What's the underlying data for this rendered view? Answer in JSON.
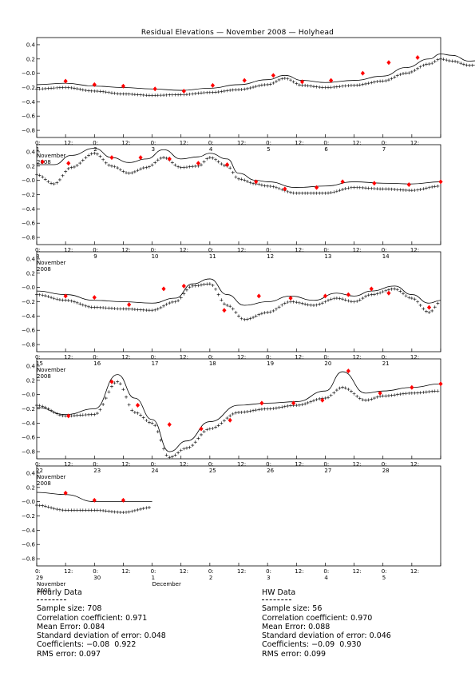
{
  "chart_data": {
    "type": "line",
    "title": "Residual Elevations — November 2008 — Holyhead",
    "yticks": [
      "0.4",
      "0.2",
      "−0.0",
      "−0.2",
      "−0.4",
      "−0.6",
      "−0.8"
    ],
    "ylim": [
      -0.9,
      0.5
    ],
    "panels": [
      {
        "start_day": 1,
        "day_labels": [
          "1",
          "2",
          "3",
          "4",
          "5",
          "6",
          "7"
        ],
        "month_label": [
          "November",
          "2008"
        ],
        "extra_label": "",
        "line": [
          [
            1.0,
            -0.16
          ],
          [
            1.5,
            -0.14
          ],
          [
            2.0,
            -0.18
          ],
          [
            2.5,
            -0.2
          ],
          [
            3.0,
            -0.22
          ],
          [
            3.5,
            -0.24
          ],
          [
            4.0,
            -0.21
          ],
          [
            4.5,
            -0.16
          ],
          [
            5.0,
            -0.09
          ],
          [
            5.3,
            -0.03
          ],
          [
            5.6,
            -0.1
          ],
          [
            6.0,
            -0.13
          ],
          [
            6.5,
            -0.1
          ],
          [
            7.0,
            -0.04
          ],
          [
            7.4,
            0.08
          ],
          [
            7.8,
            0.2
          ],
          [
            8.0,
            0.27
          ],
          [
            8.2,
            0.25
          ],
          [
            8.5,
            0.17
          ],
          [
            8.7,
            0.18
          ]
        ],
        "plus": [
          [
            1.0,
            -0.22
          ],
          [
            1.5,
            -0.2
          ],
          [
            2.0,
            -0.25
          ],
          [
            2.5,
            -0.29
          ],
          [
            3.0,
            -0.31
          ],
          [
            3.5,
            -0.3
          ],
          [
            4.0,
            -0.27
          ],
          [
            4.5,
            -0.23
          ],
          [
            5.0,
            -0.16
          ],
          [
            5.3,
            -0.07
          ],
          [
            5.6,
            -0.17
          ],
          [
            6.0,
            -0.2
          ],
          [
            6.5,
            -0.17
          ],
          [
            7.0,
            -0.11
          ],
          [
            7.4,
            0.0
          ],
          [
            7.8,
            0.13
          ],
          [
            8.0,
            0.2
          ],
          [
            8.2,
            0.17
          ],
          [
            8.5,
            0.11
          ],
          [
            8.7,
            0.12
          ]
        ],
        "diamonds": [
          [
            1.5,
            -0.11
          ],
          [
            2.0,
            -0.16
          ],
          [
            2.5,
            -0.18
          ],
          [
            3.05,
            -0.22
          ],
          [
            3.55,
            -0.25
          ],
          [
            4.05,
            -0.17
          ],
          [
            4.6,
            -0.1
          ],
          [
            5.1,
            -0.03
          ],
          [
            5.6,
            -0.12
          ],
          [
            6.1,
            -0.1
          ],
          [
            6.65,
            0.0
          ],
          [
            7.1,
            0.15
          ],
          [
            7.6,
            0.22
          ]
        ]
      },
      {
        "start_day": 8,
        "day_labels": [
          "8",
          "9",
          "10",
          "11",
          "12",
          "13",
          "14"
        ],
        "month_label": [
          "November",
          "2008"
        ],
        "extra_label": "",
        "line": [
          [
            8.0,
            0.22
          ],
          [
            8.3,
            0.22
          ],
          [
            8.6,
            0.35
          ],
          [
            9.0,
            0.45
          ],
          [
            9.3,
            0.32
          ],
          [
            9.6,
            0.25
          ],
          [
            9.9,
            0.3
          ],
          [
            10.2,
            0.43
          ],
          [
            10.5,
            0.3
          ],
          [
            10.8,
            0.33
          ],
          [
            11.0,
            0.38
          ],
          [
            11.3,
            0.3
          ],
          [
            11.5,
            0.1
          ],
          [
            11.8,
            0.0
          ],
          [
            12.0,
            -0.02
          ],
          [
            12.5,
            -0.1
          ],
          [
            13.0,
            -0.08
          ],
          [
            13.5,
            -0.02
          ],
          [
            14.0,
            -0.04
          ],
          [
            14.5,
            -0.05
          ],
          [
            15.0,
            -0.02
          ]
        ],
        "plus": [
          [
            8.0,
            0.08
          ],
          [
            8.3,
            -0.05
          ],
          [
            8.6,
            0.18
          ],
          [
            9.0,
            0.38
          ],
          [
            9.3,
            0.2
          ],
          [
            9.6,
            0.1
          ],
          [
            9.9,
            0.18
          ],
          [
            10.2,
            0.32
          ],
          [
            10.5,
            0.18
          ],
          [
            10.8,
            0.2
          ],
          [
            11.0,
            0.32
          ],
          [
            11.3,
            0.2
          ],
          [
            11.5,
            0.02
          ],
          [
            11.8,
            -0.05
          ],
          [
            12.0,
            -0.08
          ],
          [
            12.5,
            -0.18
          ],
          [
            13.0,
            -0.18
          ],
          [
            13.5,
            -0.1
          ],
          [
            14.0,
            -0.12
          ],
          [
            14.5,
            -0.14
          ],
          [
            15.0,
            -0.08
          ]
        ],
        "diamonds": [
          [
            8.1,
            0.26
          ],
          [
            8.55,
            0.24
          ],
          [
            9.3,
            0.32
          ],
          [
            9.8,
            0.32
          ],
          [
            10.3,
            0.3
          ],
          [
            10.8,
            0.24
          ],
          [
            11.3,
            0.22
          ],
          [
            11.8,
            -0.02
          ],
          [
            12.3,
            -0.12
          ],
          [
            12.85,
            -0.1
          ],
          [
            13.3,
            -0.02
          ],
          [
            13.85,
            -0.04
          ],
          [
            14.45,
            -0.06
          ],
          [
            15.0,
            -0.02
          ]
        ]
      },
      {
        "start_day": 15,
        "day_labels": [
          "15",
          "16",
          "17",
          "18",
          "19",
          "20",
          "21"
        ],
        "month_label": [
          "November",
          "2008"
        ],
        "extra_label": "",
        "line": [
          [
            15.0,
            -0.05
          ],
          [
            15.5,
            -0.1
          ],
          [
            16.0,
            -0.18
          ],
          [
            16.5,
            -0.2
          ],
          [
            17.0,
            -0.22
          ],
          [
            17.4,
            -0.15
          ],
          [
            17.7,
            0.05
          ],
          [
            18.0,
            0.12
          ],
          [
            18.3,
            -0.1
          ],
          [
            18.6,
            -0.25
          ],
          [
            19.0,
            -0.2
          ],
          [
            19.4,
            -0.12
          ],
          [
            19.8,
            -0.18
          ],
          [
            20.2,
            -0.08
          ],
          [
            20.5,
            -0.12
          ],
          [
            20.8,
            -0.05
          ],
          [
            21.2,
            0.02
          ],
          [
            21.5,
            -0.1
          ],
          [
            21.8,
            -0.22
          ],
          [
            22.0,
            -0.18
          ]
        ],
        "plus": [
          [
            15.0,
            -0.1
          ],
          [
            15.5,
            -0.18
          ],
          [
            16.0,
            -0.28
          ],
          [
            16.5,
            -0.3
          ],
          [
            17.0,
            -0.32
          ],
          [
            17.4,
            -0.2
          ],
          [
            17.7,
            0.02
          ],
          [
            18.0,
            0.05
          ],
          [
            18.3,
            -0.25
          ],
          [
            18.6,
            -0.45
          ],
          [
            19.0,
            -0.35
          ],
          [
            19.4,
            -0.2
          ],
          [
            19.8,
            -0.25
          ],
          [
            20.2,
            -0.15
          ],
          [
            20.5,
            -0.2
          ],
          [
            20.8,
            -0.1
          ],
          [
            21.2,
            -0.02
          ],
          [
            21.5,
            -0.15
          ],
          [
            21.8,
            -0.35
          ],
          [
            22.0,
            -0.2
          ]
        ],
        "diamonds": [
          [
            15.5,
            -0.12
          ],
          [
            16.0,
            -0.14
          ],
          [
            16.6,
            -0.24
          ],
          [
            17.2,
            -0.02
          ],
          [
            17.55,
            0.02
          ],
          [
            18.25,
            -0.32
          ],
          [
            18.85,
            -0.12
          ],
          [
            19.4,
            -0.15
          ],
          [
            20.0,
            -0.12
          ],
          [
            20.4,
            -0.1
          ],
          [
            20.8,
            -0.02
          ],
          [
            21.1,
            -0.08
          ],
          [
            21.8,
            -0.28
          ]
        ]
      },
      {
        "start_day": 22,
        "day_labels": [
          "22",
          "23",
          "24",
          "25",
          "26",
          "27",
          "28"
        ],
        "month_label": [
          "November",
          "2008"
        ],
        "extra_label": "",
        "line": [
          [
            22.0,
            -0.18
          ],
          [
            22.5,
            -0.28
          ],
          [
            23.0,
            -0.2
          ],
          [
            23.4,
            0.28
          ],
          [
            23.7,
            -0.05
          ],
          [
            24.0,
            -0.35
          ],
          [
            24.3,
            -0.8
          ],
          [
            24.6,
            -0.65
          ],
          [
            25.0,
            -0.38
          ],
          [
            25.5,
            -0.15
          ],
          [
            26.0,
            -0.12
          ],
          [
            26.5,
            -0.1
          ],
          [
            27.0,
            0.05
          ],
          [
            27.3,
            0.32
          ],
          [
            27.7,
            0.02
          ],
          [
            28.0,
            0.05
          ],
          [
            28.5,
            0.1
          ],
          [
            29.0,
            0.15
          ]
        ],
        "plus": [
          [
            22.0,
            -0.15
          ],
          [
            22.5,
            -0.3
          ],
          [
            23.0,
            -0.28
          ],
          [
            23.4,
            0.18
          ],
          [
            23.7,
            -0.25
          ],
          [
            24.0,
            -0.4
          ],
          [
            24.3,
            -0.88
          ],
          [
            24.6,
            -0.75
          ],
          [
            25.0,
            -0.48
          ],
          [
            25.5,
            -0.25
          ],
          [
            26.0,
            -0.2
          ],
          [
            26.5,
            -0.15
          ],
          [
            27.0,
            -0.05
          ],
          [
            27.3,
            0.1
          ],
          [
            27.7,
            -0.08
          ],
          [
            28.0,
            -0.02
          ],
          [
            28.5,
            0.02
          ],
          [
            29.0,
            0.05
          ]
        ],
        "diamonds": [
          [
            22.55,
            -0.3
          ],
          [
            23.3,
            0.18
          ],
          [
            23.75,
            -0.15
          ],
          [
            24.3,
            -0.42
          ],
          [
            24.85,
            -0.48
          ],
          [
            25.35,
            -0.36
          ],
          [
            25.9,
            -0.12
          ],
          [
            26.45,
            -0.12
          ],
          [
            26.95,
            -0.08
          ],
          [
            27.4,
            0.33
          ],
          [
            27.95,
            0.02
          ],
          [
            28.5,
            0.1
          ],
          [
            29.0,
            0.15
          ]
        ]
      },
      {
        "start_day": 29,
        "day_labels": [
          "29",
          "30",
          "1",
          "2",
          "3",
          "4",
          "5"
        ],
        "month_label": [
          "November",
          "2008"
        ],
        "extra_label": "December",
        "line": [
          [
            29.0,
            0.13
          ],
          [
            29.5,
            0.1
          ],
          [
            30.0,
            0.0
          ],
          [
            30.5,
            0.0
          ],
          [
            31.0,
            0.0
          ]
        ],
        "plus": [
          [
            29.0,
            -0.05
          ],
          [
            29.5,
            -0.12
          ],
          [
            30.0,
            -0.12
          ],
          [
            30.5,
            -0.15
          ],
          [
            31.0,
            -0.08
          ]
        ],
        "diamonds": [
          [
            29.5,
            0.12
          ],
          [
            30.0,
            0.02
          ],
          [
            30.5,
            0.02
          ]
        ]
      }
    ]
  },
  "stats": {
    "hourly": {
      "heading": "Hourly Data",
      "lines": [
        "Sample size: 708",
        "Correlation coefficient: 0.971",
        "Mean Error: 0.084",
        "Standard deviation of error: 0.048",
        "Coefficients: −0.08  0.922",
        "RMS error: 0.097"
      ]
    },
    "hw": {
      "heading": "HW Data",
      "lines": [
        "Sample size: 56",
        "Correlation coefficient: 0.970",
        "Mean Error: 0.088",
        "Standard deviation of error: 0.046",
        "Coefficients: −0.09  0.930",
        "RMS error: 0.099"
      ]
    }
  }
}
